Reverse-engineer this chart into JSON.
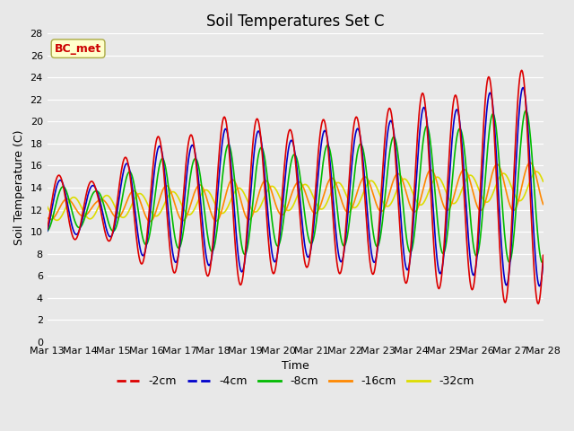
{
  "title": "Soil Temperatures Set C",
  "xlabel": "Time",
  "ylabel": "Soil Temperature (C)",
  "ylim": [
    0,
    28
  ],
  "yticks": [
    0,
    2,
    4,
    6,
    8,
    10,
    12,
    14,
    16,
    18,
    20,
    22,
    24,
    26,
    28
  ],
  "x_labels": [
    "Mar 13",
    "Mar 14",
    "Mar 15",
    "Mar 16",
    "Mar 17",
    "Mar 18",
    "Mar 19",
    "Mar 20",
    "Mar 21",
    "Mar 22",
    "Mar 23",
    "Mar 24",
    "Mar 25",
    "Mar 26",
    "Mar 27",
    "Mar 28"
  ],
  "legend_labels": [
    "-2cm",
    "-4cm",
    "-8cm",
    "-16cm",
    "-32cm"
  ],
  "legend_colors": [
    "#dd0000",
    "#0000cc",
    "#00bb00",
    "#ff8800",
    "#dddd00"
  ],
  "annotation_text": "BC_met",
  "annotation_color": "#cc0000",
  "annotation_bg": "#ffffcc",
  "annotation_edge": "#aaaa44",
  "bg_color": "#e8e8e8",
  "grid_color": "#ffffff"
}
